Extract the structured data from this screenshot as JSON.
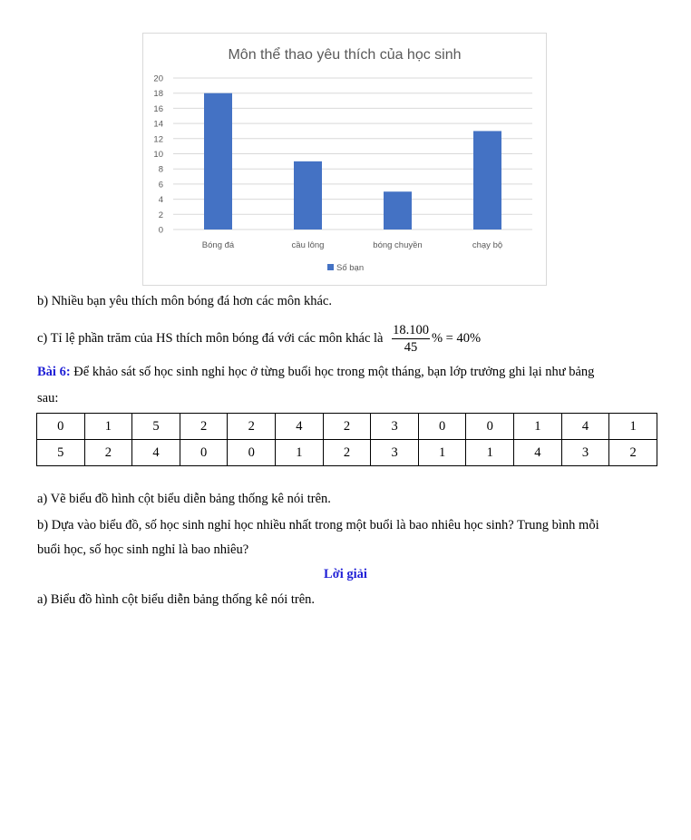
{
  "chart_data": {
    "type": "bar",
    "title": "Môn thể thao yêu thích của học sinh",
    "categories": [
      "Bóng đá",
      "cầu lông",
      "bóng chuyền",
      "chạy bộ"
    ],
    "series": [
      {
        "name": "Số bạn",
        "values": [
          18,
          9,
          5,
          13
        ]
      }
    ],
    "ylim": [
      0,
      20
    ],
    "yticks": [
      "0",
      "2",
      "4",
      "6",
      "8",
      "10",
      "12",
      "14",
      "16",
      "18",
      "20"
    ],
    "grid": true,
    "legend": "bottom",
    "color": "#4472C4"
  },
  "text": {
    "b": "b) Nhiều bạn yêu thích môn bóng đá hơn các môn khác.",
    "c_prefix": "c) Tỉ lệ phần trăm của HS thích môn bóng đá với các môn khác là",
    "c_num": "18.100",
    "c_den": "45",
    "c_suffix": "% = 40%",
    "bai6_label": "Bài 6:",
    "bai6_text": " Để khảo sát số học sinh nghỉ học ở từng buổi học trong một tháng, bạn lớp trưởng ghi lại như bảng",
    "bai6_cont": "sau:",
    "qa": "a) Vẽ biểu đồ hình cột biểu diễn bảng thống kê nói trên.",
    "qb1": "b) Dựa vào biểu đồ, số học sinh nghỉ học nhiều nhất trong một buổi là bao nhiêu học sinh? Trung bình mỗi",
    "qb2": "buổi học, số học sinh nghỉ là bao nhiêu?",
    "loi_giai": "Lời giải",
    "ans_a": "a) Biểu đồ hình cột biểu diễn bảng thống kê nói trên."
  },
  "table": [
    [
      "0",
      "1",
      "5",
      "2",
      "2",
      "4",
      "2",
      "3",
      "0",
      "0",
      "1",
      "4",
      "1"
    ],
    [
      "5",
      "2",
      "4",
      "0",
      "0",
      "1",
      "2",
      "3",
      "1",
      "1",
      "4",
      "3",
      "2"
    ]
  ]
}
